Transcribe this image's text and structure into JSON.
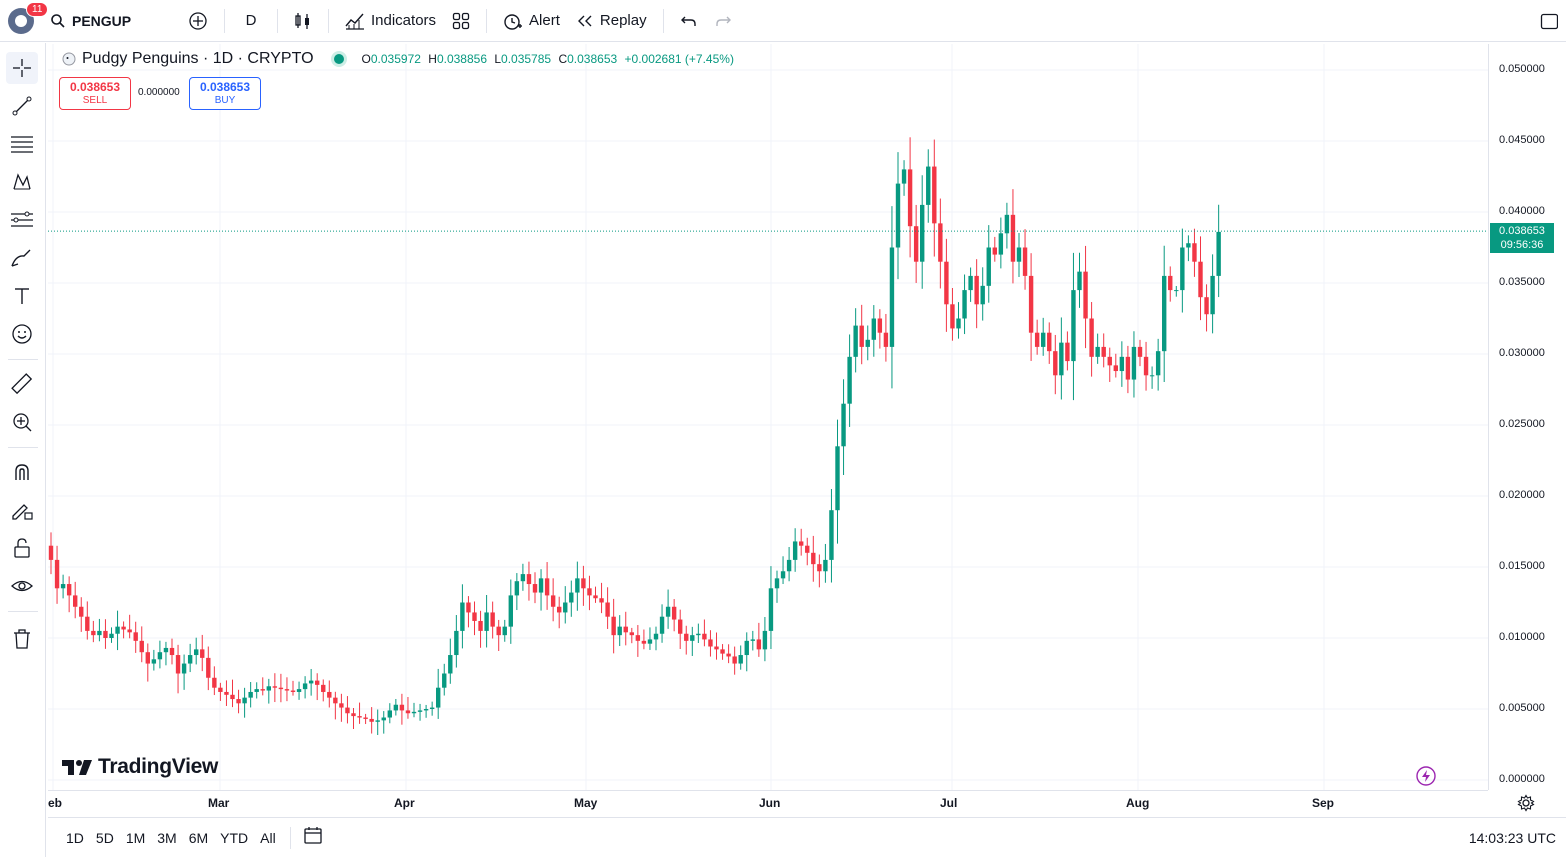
{
  "toolbar": {
    "notifications": "11",
    "symbol": "PENGUP",
    "interval": "D",
    "indicators": "Indicators",
    "alert": "Alert",
    "replay": "Replay"
  },
  "legend": {
    "title": "Pudgy Penguins · 1D · CRYPTO",
    "o_label": "O",
    "o": "0.035972",
    "h_label": "H",
    "h": "0.038856",
    "l_label": "L",
    "l": "0.035785",
    "c_label": "C",
    "c": "0.038653",
    "change": "+0.002681 (+7.45%)"
  },
  "trade": {
    "sell_price": "0.038653",
    "sell_label": "SELL",
    "spread": "0.000000",
    "buy_price": "0.038653",
    "buy_label": "BUY"
  },
  "price_tag": {
    "price": "0.038653",
    "countdown": "09:56:36"
  },
  "brand": "TradingView",
  "ranges": [
    "1D",
    "5D",
    "1M",
    "3M",
    "6M",
    "YTD",
    "All"
  ],
  "clock": "14:03:23 UTC",
  "colors": {
    "up": "#089981",
    "down": "#f23645",
    "accent": "#2962ff"
  },
  "chart_data": {
    "type": "candlestick",
    "title": "Pudgy Penguins · 1D · CRYPTO",
    "x_ticks": [
      "Feb",
      "Mar",
      "Apr",
      "May",
      "Jun",
      "Jul",
      "Aug",
      "Sep"
    ],
    "y_ticks": [
      "0.050000",
      "0.045000",
      "0.040000",
      "0.035000",
      "0.030000",
      "0.025000",
      "0.020000",
      "0.015000",
      "0.010000",
      "0.005000",
      "0.000000"
    ],
    "ylim": [
      0,
      0.05
    ],
    "last_price": 0.038653,
    "close_series": [
      0.0155,
      0.0135,
      0.0138,
      0.013,
      0.0122,
      0.0115,
      0.0105,
      0.0102,
      0.0105,
      0.01,
      0.0103,
      0.0108,
      0.0106,
      0.0104,
      0.0098,
      0.009,
      0.0082,
      0.0085,
      0.009,
      0.0093,
      0.0088,
      0.0075,
      0.0082,
      0.0088,
      0.0092,
      0.0086,
      0.0072,
      0.0065,
      0.0062,
      0.006,
      0.0057,
      0.0054,
      0.0058,
      0.0062,
      0.0064,
      0.0063,
      0.0066,
      0.0065,
      0.0064,
      0.0063,
      0.0062,
      0.0064,
      0.0068,
      0.007,
      0.0067,
      0.0062,
      0.0058,
      0.0054,
      0.0051,
      0.0047,
      0.0045,
      0.0044,
      0.0043,
      0.0041,
      0.0042,
      0.0044,
      0.0049,
      0.0053,
      0.0049,
      0.0047,
      0.0048,
      0.0049,
      0.005,
      0.0051,
      0.0065,
      0.0075,
      0.0088,
      0.0105,
      0.0125,
      0.0118,
      0.0112,
      0.0105,
      0.0118,
      0.0108,
      0.0102,
      0.0108,
      0.013,
      0.014,
      0.0145,
      0.0138,
      0.0132,
      0.0142,
      0.013,
      0.0122,
      0.0118,
      0.0125,
      0.0132,
      0.0142,
      0.0135,
      0.013,
      0.0128,
      0.0125,
      0.0115,
      0.0102,
      0.0108,
      0.0104,
      0.0102,
      0.0098,
      0.0096,
      0.0099,
      0.0103,
      0.0115,
      0.0122,
      0.0113,
      0.0103,
      0.0098,
      0.0102,
      0.0103,
      0.0099,
      0.0094,
      0.0092,
      0.0089,
      0.0087,
      0.0082,
      0.0088,
      0.0098,
      0.0099,
      0.0092,
      0.0105,
      0.0135,
      0.0142,
      0.0147,
      0.0155,
      0.0168,
      0.0165,
      0.016,
      0.0152,
      0.0147,
      0.0155,
      0.019,
      0.0235,
      0.0265,
      0.0298,
      0.032,
      0.0305,
      0.031,
      0.0325,
      0.0315,
      0.0305,
      0.0375,
      0.042,
      0.043,
      0.039,
      0.0365,
      0.0405,
      0.0432,
      0.0392,
      0.0365,
      0.0335,
      0.0318,
      0.0325,
      0.0345,
      0.0355,
      0.0335,
      0.0348,
      0.0375,
      0.037,
      0.0385,
      0.0398,
      0.0365,
      0.0375,
      0.0355,
      0.0315,
      0.0305,
      0.0315,
      0.0302,
      0.0285,
      0.0308,
      0.0295,
      0.0345,
      0.0358,
      0.0325,
      0.0298,
      0.0305,
      0.0298,
      0.0292,
      0.0288,
      0.0298,
      0.0282,
      0.0305,
      0.0298,
      0.0285,
      0.0285,
      0.0302,
      0.0355,
      0.0345,
      0.0345,
      0.0375,
      0.0378,
      0.0365,
      0.034,
      0.0328,
      0.0355,
      0.0386
    ]
  }
}
